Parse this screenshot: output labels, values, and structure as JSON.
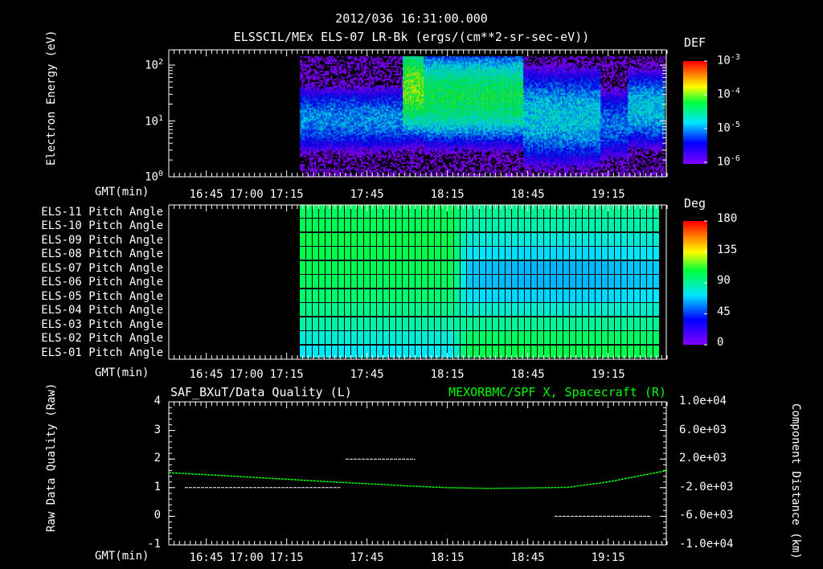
{
  "header": {
    "timestamp": "2012/036 16:31:00.000",
    "title": "ELSSCIL/MEx ELS-07 LR-Bk  (ergs/(cm**2-sr-sec-eV))"
  },
  "colors": {
    "background": "#000000",
    "axis": "#ffffff",
    "spacecraft_series": "#00ff00",
    "quality_series": "#ffffff"
  },
  "time_axis": {
    "label": "GMT(min)",
    "ticks": [
      "16:45",
      "17:00",
      "17:15",
      "17:45",
      "18:15",
      "18:45",
      "19:15"
    ],
    "range": [
      "16:31",
      "19:37"
    ]
  },
  "chart_data": [
    {
      "type": "heatmap",
      "name": "electron-spectrogram",
      "ylabel": "Electron Energy (eV)",
      "yscale": "log",
      "ylim": [
        1,
        190
      ],
      "ytick_labels": [
        "10^0",
        "10^1",
        "10^2"
      ],
      "colorbar": {
        "title": "DEF",
        "scale": "log",
        "range": [
          1e-06,
          0.001
        ],
        "tick_labels": [
          "10^-3",
          "10^-4",
          "10^-5",
          "10^-6"
        ]
      },
      "data_start": "17:20",
      "segments": [
        {
          "start": "17:20",
          "end": "17:58",
          "peak_energy_eV": 11,
          "peak_log_def": -5.0,
          "width_decades": 0.35
        },
        {
          "start": "17:58",
          "end": "18:06",
          "peak_energy_eV": 40,
          "peak_log_def": -4.0,
          "width_decades": 0.45
        },
        {
          "start": "18:06",
          "end": "18:43",
          "peak_energy_eV": 28,
          "peak_log_def": -4.3,
          "width_decades": 0.45
        },
        {
          "start": "18:43",
          "end": "19:12",
          "peak_energy_eV": 12,
          "peak_log_def": -4.8,
          "width_decades": 0.5
        },
        {
          "start": "19:12",
          "end": "19:22",
          "peak_energy_eV": 9,
          "peak_log_def": -5.1,
          "width_decades": 0.4
        },
        {
          "start": "19:22",
          "end": "19:37",
          "peak_energy_eV": 17,
          "peak_log_def": -4.8,
          "width_decades": 0.4
        }
      ]
    },
    {
      "type": "heatmap",
      "name": "pitch-angle",
      "rows": [
        "ELS-11 Pitch Angle",
        "ELS-10 Pitch Angle",
        "ELS-09 Pitch Angle",
        "ELS-08 Pitch Angle",
        "ELS-07 Pitch Angle",
        "ELS-06 Pitch Angle",
        "ELS-05 Pitch Angle",
        "ELS-04 Pitch Angle",
        "ELS-03 Pitch Angle",
        "ELS-02 Pitch Angle",
        "ELS-01 Pitch Angle"
      ],
      "colorbar": {
        "title": "Deg",
        "range": [
          0,
          180
        ],
        "tick_labels": [
          "180",
          "135",
          "90",
          "45",
          "0"
        ]
      },
      "time_range": [
        "17:20",
        "19:33"
      ],
      "periods": [
        {
          "start": "17:20",
          "end": "18:17",
          "values_deg": [
            102,
            104,
            105,
            105,
            104,
            102,
            99,
            94,
            88,
            80,
            74
          ]
        },
        {
          "start": "18:17",
          "end": "19:33",
          "values_deg": [
            92,
            88,
            80,
            73,
            68,
            68,
            72,
            82,
            92,
            100,
            104
          ]
        }
      ]
    },
    {
      "type": "line",
      "name": "data-quality-and-position",
      "left_title": "SAF_BXuT/Data Quality (L)",
      "right_title": "MEXORBMC/SPF X, Spacecraft (R)",
      "ylabel_left": "Raw Data Quality (Raw)",
      "ylabel_right": "Component Distance (km)",
      "ylim_left": [
        -1,
        4
      ],
      "ytick_labels_left": [
        "4",
        "3",
        "2",
        "1",
        "0",
        "-1"
      ],
      "ylim_right": [
        -10000,
        10000
      ],
      "ytick_labels_right": [
        "1.0e+04",
        "6.0e+03",
        "2.0e+03",
        "-2.0e+03",
        "-6.0e+03",
        "-1.0e+04"
      ],
      "series": [
        {
          "name": "Data Quality",
          "axis": "left",
          "segments": [
            {
              "start": "16:37",
              "end": "17:35",
              "value": 1
            },
            {
              "start": "17:37",
              "end": "18:03",
              "value": 2
            },
            {
              "start": "18:55",
              "end": "19:31",
              "value": 0
            }
          ]
        },
        {
          "name": "SPF X",
          "axis": "right",
          "x": [
            "16:31",
            "17:00",
            "17:30",
            "18:00",
            "18:15",
            "18:30",
            "18:45",
            "19:00",
            "19:15",
            "19:37"
          ],
          "y": [
            100,
            -500,
            -1150,
            -1750,
            -2000,
            -2100,
            -2050,
            -1950,
            -1200,
            400
          ]
        }
      ]
    }
  ]
}
